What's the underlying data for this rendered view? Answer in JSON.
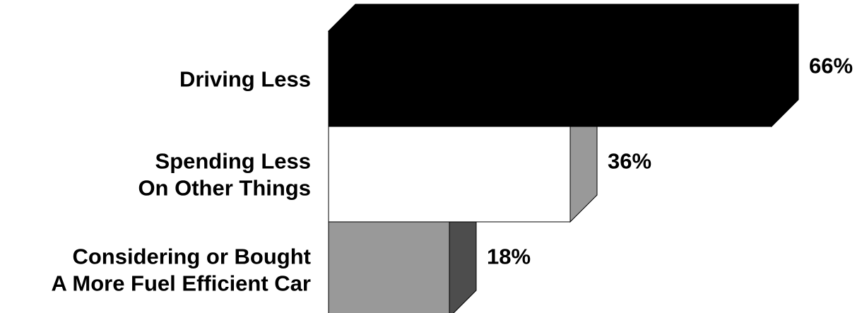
{
  "chart_data": {
    "type": "bar",
    "orientation": "horizontal",
    "three_d": true,
    "categories": [
      [
        "Driving Less"
      ],
      [
        "Spending Less",
        "On Other Things"
      ],
      [
        "Considering or Bought",
        "A More Fuel Efficient Car"
      ]
    ],
    "values": [
      66,
      36,
      18
    ],
    "value_labels": [
      "66%",
      "36%",
      "18%"
    ],
    "unit": "%",
    "xlim": [
      0,
      100
    ],
    "grid": false,
    "legend": "none",
    "colors": {
      "bar_fronts": [
        "#000000",
        "#ffffff",
        "#999999"
      ],
      "bar_sides": [
        "#000000",
        "#999999",
        "#4d4d4d"
      ],
      "outline": "#000000"
    }
  }
}
